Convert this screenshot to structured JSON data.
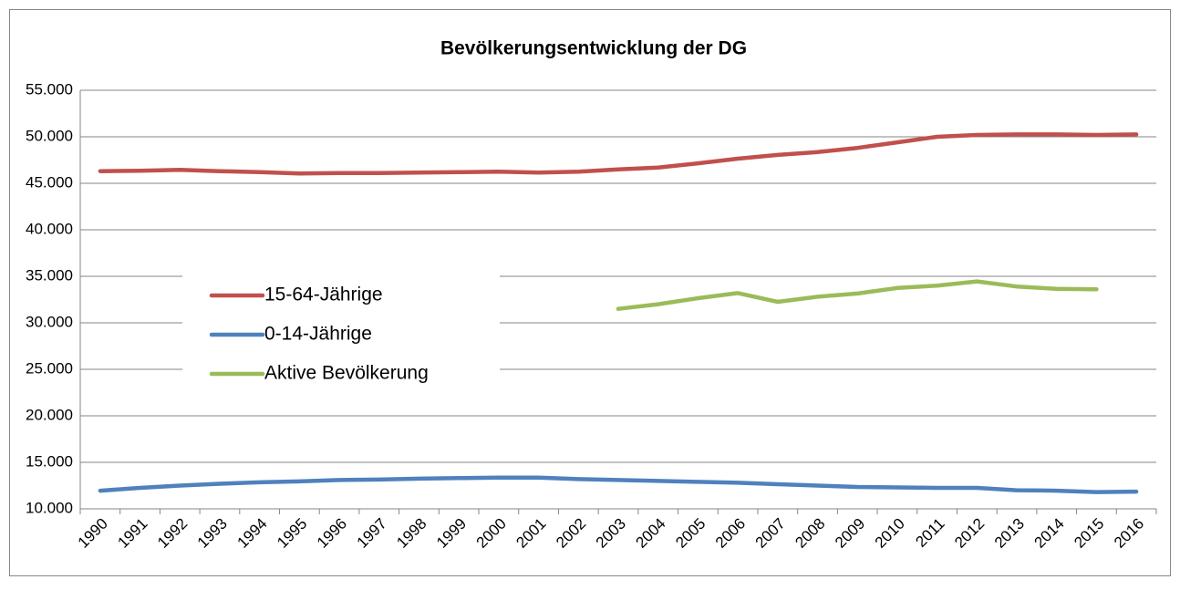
{
  "chart_data": {
    "type": "line",
    "title": "Bevölkerungsentwicklung der DG",
    "categories": [
      "1990",
      "1991",
      "1992",
      "1993",
      "1994",
      "1995",
      "1996",
      "1997",
      "1998",
      "1999",
      "2000",
      "2001",
      "2002",
      "2003",
      "2004",
      "2005",
      "2006",
      "2007",
      "2008",
      "2009",
      "2010",
      "2011",
      "2012",
      "2013",
      "2014",
      "2015",
      "2016"
    ],
    "series": [
      {
        "name": "15-64-Jährige",
        "color": "#c0504d",
        "values": [
          46300,
          46350,
          46450,
          46300,
          46200,
          46050,
          46100,
          46100,
          46150,
          46200,
          46250,
          46150,
          46250,
          46500,
          46700,
          47150,
          47650,
          48050,
          48350,
          48800,
          49400,
          50000,
          50200,
          50250,
          50250,
          50200,
          50250
        ]
      },
      {
        "name": "0-14-Jährige",
        "color": "#4f81bd",
        "values": [
          11950,
          12250,
          12500,
          12700,
          12850,
          12950,
          13100,
          13150,
          13250,
          13300,
          13350,
          13350,
          13200,
          13100,
          13000,
          12900,
          12800,
          12650,
          12500,
          12350,
          12300,
          12250,
          12250,
          12000,
          11950,
          11800,
          11850
        ]
      },
      {
        "name": "Aktive Bevölkerung",
        "color": "#9bbb59",
        "values": [
          null,
          null,
          null,
          null,
          null,
          null,
          null,
          null,
          null,
          null,
          null,
          null,
          null,
          31500,
          32000,
          32650,
          33200,
          32250,
          32800,
          33150,
          33750,
          34000,
          34450,
          33900,
          33650,
          33600,
          null
        ]
      }
    ],
    "ylim": [
      10000,
      55000
    ],
    "yticks": [
      {
        "value": 10000,
        "label": "10.000"
      },
      {
        "value": 15000,
        "label": "15.000"
      },
      {
        "value": 20000,
        "label": "20.000"
      },
      {
        "value": 25000,
        "label": "25.000"
      },
      {
        "value": 30000,
        "label": "30.000"
      },
      {
        "value": 35000,
        "label": "35.000"
      },
      {
        "value": 40000,
        "label": "40.000"
      },
      {
        "value": 45000,
        "label": "45.000"
      },
      {
        "value": 50000,
        "label": "50.000"
      },
      {
        "value": 55000,
        "label": "55.000"
      }
    ],
    "grid": true,
    "legend": "left"
  }
}
